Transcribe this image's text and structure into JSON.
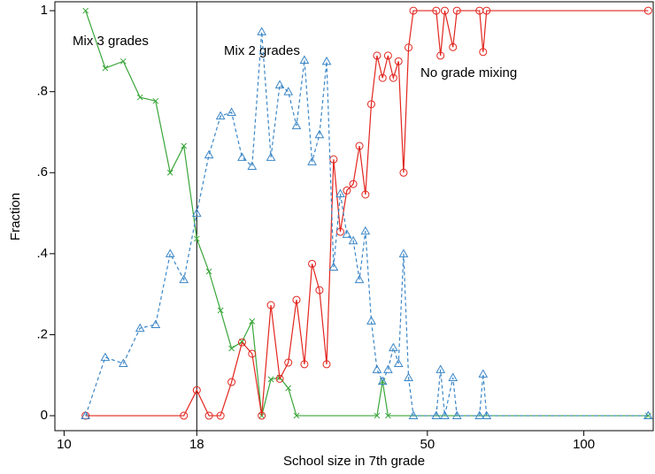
{
  "chart_data": {
    "type": "line",
    "x_label": "School size in 7th grade",
    "y_label": "Fraction",
    "log_x": true,
    "xlim": [
      9.6,
      136
    ],
    "ylim": [
      -0.037,
      1.022
    ],
    "xticks": [
      10,
      18,
      50,
      100
    ],
    "yticks": [
      0,
      {
        "value": 0.2,
        "label": ".2"
      },
      {
        "value": 0.4,
        "label": ".4"
      },
      {
        "value": 0.6,
        "label": ".6"
      },
      {
        "value": 0.8,
        "label": ".8"
      },
      1
    ],
    "xline": 18,
    "annotations": [
      "Mix 3 grades",
      "Mix 2 grades",
      "No grade mixing"
    ],
    "series": [
      {
        "name": "Mix 3 grades",
        "color": "#3aa63a",
        "marker": "x",
        "dashed": false,
        "x": [
          11,
          12,
          13,
          14,
          15,
          16,
          17,
          18,
          19,
          20,
          21,
          22,
          23,
          24,
          25,
          26,
          27,
          28,
          40,
          41,
          42,
          133
        ],
        "values": [
          1,
          0.858,
          0.875,
          0.786,
          0.777,
          0.6,
          0.666,
          0.437,
          0.356,
          0.26,
          0.166,
          0.183,
          0.233,
          0,
          0.09,
          0.094,
          0.068,
          0,
          0,
          0.085,
          0,
          0
        ]
      },
      {
        "name": "No grade mixing",
        "color": "#e2261f",
        "marker": "circle",
        "dashed": false,
        "x": [
          11,
          17,
          18,
          19,
          20,
          21,
          22,
          23,
          24,
          25,
          26,
          27,
          28,
          29,
          30,
          31,
          32,
          33,
          34,
          35,
          36,
          37,
          38,
          39,
          40,
          41,
          42,
          43,
          44,
          45,
          46,
          47,
          52,
          53,
          54,
          56,
          57,
          63,
          64,
          65,
          133
        ],
        "values": [
          0,
          0,
          0.063,
          0,
          0,
          0.083,
          0.181,
          0.153,
          0,
          0.273,
          0.091,
          0.131,
          0.286,
          0.127,
          0.375,
          0.31,
          0.127,
          0.633,
          0.454,
          0.556,
          0.572,
          0.666,
          0.546,
          0.769,
          0.889,
          0.834,
          0.889,
          0.834,
          0.875,
          0.6,
          0.909,
          1,
          1,
          0.889,
          1,
          0.91,
          1,
          1,
          0.898,
          1,
          1
        ]
      },
      {
        "name": "Mix 2 grades",
        "color": "#3b86c6",
        "marker": "triangle",
        "dashed": true,
        "x": [
          11,
          12,
          13,
          14,
          15,
          16,
          17,
          18,
          19,
          20,
          21,
          22,
          23,
          24,
          25,
          26,
          27,
          28,
          29,
          30,
          31,
          32,
          33,
          34,
          35,
          36,
          37,
          38,
          39,
          40,
          41,
          42,
          43,
          44,
          45,
          46,
          47,
          52,
          53,
          54,
          56,
          57,
          63,
          64,
          65,
          133
        ],
        "values": [
          0,
          0.144,
          0.129,
          0.216,
          0.225,
          0.4,
          0.336,
          0.5,
          0.644,
          0.74,
          0.749,
          0.638,
          0.616,
          0.948,
          0.638,
          0.817,
          0.8,
          0.716,
          0.878,
          0.627,
          0.694,
          0.875,
          0.367,
          0.548,
          0.448,
          0.432,
          0.336,
          0.456,
          0.234,
          0.114,
          0.085,
          0.114,
          0.168,
          0.129,
          0.4,
          0.094,
          0,
          0,
          0.114,
          0,
          0.094,
          0,
          0,
          0.103,
          0,
          0
        ]
      }
    ]
  }
}
